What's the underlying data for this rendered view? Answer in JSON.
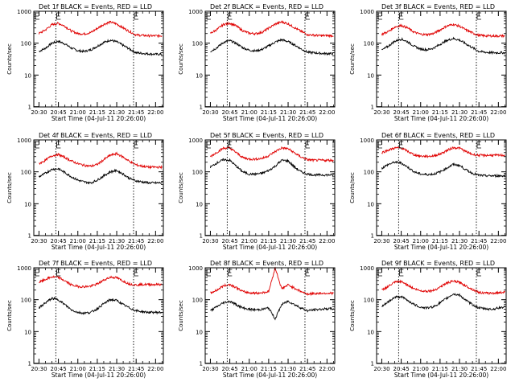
{
  "figure": {
    "tick_labels_x": [
      "20:30",
      "20:45",
      "21:00",
      "21:15",
      "21:30",
      "21:45",
      "22:00"
    ],
    "tick_labels_y": [
      "1",
      "10",
      "100",
      "1000"
    ],
    "colors": {
      "events": "#000000",
      "lld": "#e00000",
      "axes": "#000000",
      "background": "#ffffff"
    }
  },
  "chart_data": [
    {
      "type": "line",
      "title": "Det 1f BLACK = Events, RED = LLD",
      "xlabel": "Start Time (04-Jul-11 20:26:00)",
      "ylabel": "Counts/sec",
      "ylim": [
        1,
        1000
      ],
      "log_y": true,
      "xlim": [
        "20:26",
        "22:06"
      ],
      "markers": [
        "20:43",
        "21:43"
      ],
      "x": [
        "20:30",
        "20:35",
        "20:40",
        "20:45",
        "20:50",
        "20:55",
        "21:00",
        "21:05",
        "21:10",
        "21:15",
        "21:20",
        "21:25",
        "21:30",
        "21:35",
        "21:40",
        "21:45",
        "21:50",
        "21:55",
        "22:00",
        "22:05"
      ],
      "series": [
        {
          "name": "Events",
          "values": [
            55,
            70,
            100,
            115,
            95,
            70,
            58,
            55,
            62,
            80,
            105,
            125,
            110,
            85,
            65,
            50,
            48,
            46,
            45,
            45
          ]
        },
        {
          "name": "LLD",
          "values": [
            200,
            260,
            380,
            420,
            340,
            240,
            200,
            195,
            215,
            290,
            390,
            460,
            400,
            300,
            230,
            180,
            175,
            170,
            170,
            170
          ]
        }
      ]
    },
    {
      "type": "line",
      "title": "Det 2f BLACK = Events, RED = LLD",
      "xlabel": "Start Time (04-Jul-11 20:26:00)",
      "ylabel": "Counts/sec",
      "ylim": [
        1,
        1000
      ],
      "log_y": true,
      "xlim": [
        "20:26",
        "22:06"
      ],
      "markers": [
        "20:43",
        "21:43"
      ],
      "x": [
        "20:30",
        "20:35",
        "20:40",
        "20:45",
        "20:50",
        "20:55",
        "21:00",
        "21:05",
        "21:10",
        "21:15",
        "21:20",
        "21:25",
        "21:30",
        "21:35",
        "21:40",
        "21:45",
        "21:50",
        "21:55",
        "22:00",
        "22:05"
      ],
      "series": [
        {
          "name": "Events",
          "values": [
            55,
            72,
            105,
            120,
            98,
            72,
            60,
            57,
            64,
            82,
            108,
            128,
            112,
            88,
            66,
            52,
            50,
            48,
            47,
            47
          ]
        },
        {
          "name": "LLD",
          "values": [
            205,
            265,
            385,
            425,
            345,
            245,
            205,
            198,
            220,
            295,
            395,
            465,
            405,
            305,
            235,
            185,
            178,
            172,
            172,
            172
          ]
        }
      ]
    },
    {
      "type": "line",
      "title": "Det 3f BLACK = Events, RED = LLD",
      "xlabel": "Start Time (04-Jul-11 20:26:00)",
      "ylabel": "Counts/sec",
      "ylim": [
        1,
        1000
      ],
      "log_y": true,
      "xlim": [
        "20:26",
        "22:06"
      ],
      "markers": [
        "20:43",
        "21:43"
      ],
      "x": [
        "20:30",
        "20:35",
        "20:40",
        "20:45",
        "20:50",
        "20:55",
        "21:00",
        "21:05",
        "21:10",
        "21:15",
        "21:20",
        "21:25",
        "21:30",
        "21:35",
        "21:40",
        "21:45",
        "21:50",
        "21:55",
        "22:00",
        "22:05"
      ],
      "series": [
        {
          "name": "Events",
          "values": [
            60,
            80,
            115,
            135,
            110,
            80,
            65,
            62,
            70,
            92,
            120,
            140,
            125,
            95,
            72,
            55,
            52,
            50,
            50,
            50
          ]
        },
        {
          "name": "LLD",
          "values": [
            190,
            230,
            320,
            360,
            300,
            220,
            190,
            185,
            200,
            260,
            340,
            390,
            340,
            260,
            210,
            175,
            170,
            168,
            168,
            168
          ]
        }
      ]
    },
    {
      "type": "line",
      "title": "Det 4f BLACK = Events, RED = LLD",
      "xlabel": "Start Time (04-Jul-11 20:26:00)",
      "ylabel": "Counts/sec",
      "ylim": [
        1,
        1000
      ],
      "log_y": true,
      "xlim": [
        "20:26",
        "22:06"
      ],
      "markers": [
        "20:43",
        "21:43"
      ],
      "x": [
        "20:30",
        "20:35",
        "20:40",
        "20:45",
        "20:50",
        "20:55",
        "21:00",
        "21:05",
        "21:10",
        "21:15",
        "21:20",
        "21:25",
        "21:30",
        "21:35",
        "21:40",
        "21:45",
        "21:50",
        "21:55",
        "22:00",
        "22:05"
      ],
      "series": [
        {
          "name": "Events",
          "values": [
            70,
            90,
            120,
            125,
            95,
            70,
            55,
            48,
            45,
            55,
            75,
            100,
            110,
            85,
            62,
            52,
            48,
            45,
            45,
            45
          ]
        },
        {
          "name": "LLD",
          "values": [
            180,
            230,
            320,
            350,
            280,
            220,
            180,
            160,
            150,
            170,
            240,
            330,
            370,
            290,
            210,
            165,
            150,
            140,
            140,
            140
          ]
        }
      ]
    },
    {
      "type": "line",
      "title": "Det 5f BLACK = Events, RED = LLD",
      "xlabel": "Start Time (04-Jul-11 20:26:00)",
      "ylabel": "Counts/sec",
      "ylim": [
        1,
        1000
      ],
      "log_y": true,
      "xlim": [
        "20:26",
        "22:06"
      ],
      "markers": [
        "20:43",
        "21:43"
      ],
      "x": [
        "20:30",
        "20:35",
        "20:40",
        "20:45",
        "20:50",
        "20:55",
        "21:00",
        "21:05",
        "21:10",
        "21:15",
        "21:20",
        "21:25",
        "21:30",
        "21:35",
        "21:40",
        "21:45",
        "21:50",
        "21:55",
        "22:00",
        "22:05"
      ],
      "series": [
        {
          "name": "Events",
          "values": [
            140,
            190,
            240,
            230,
            150,
            100,
            85,
            85,
            90,
            110,
            150,
            230,
            220,
            140,
            100,
            85,
            80,
            80,
            80,
            80
          ]
        },
        {
          "name": "LLD",
          "values": [
            300,
            410,
            550,
            560,
            400,
            280,
            250,
            250,
            265,
            320,
            430,
            560,
            530,
            390,
            290,
            240,
            230,
            230,
            230,
            230
          ]
        }
      ]
    },
    {
      "type": "line",
      "title": "Det 6f BLACK = Events, RED = LLD",
      "xlabel": "Start Time (04-Jul-11 20:26:00)",
      "ylabel": "Counts/sec",
      "ylim": [
        1,
        1000
      ],
      "log_y": true,
      "xlim": [
        "20:26",
        "22:06"
      ],
      "markers": [
        "20:43",
        "21:43"
      ],
      "x": [
        "20:30",
        "20:35",
        "20:40",
        "20:45",
        "20:50",
        "20:55",
        "21:00",
        "21:05",
        "21:10",
        "21:15",
        "21:20",
        "21:25",
        "21:30",
        "21:35",
        "21:40",
        "21:45",
        "21:50",
        "21:55",
        "22:00",
        "22:05"
      ],
      "series": [
        {
          "name": "Events",
          "values": [
            130,
            170,
            200,
            190,
            140,
            100,
            85,
            82,
            85,
            100,
            130,
            170,
            160,
            115,
            90,
            78,
            75,
            75,
            75,
            75
          ]
        },
        {
          "name": "LLD",
          "values": [
            400,
            480,
            560,
            560,
            440,
            340,
            310,
            305,
            315,
            360,
            460,
            570,
            560,
            430,
            350,
            330,
            330,
            330,
            330,
            330
          ]
        }
      ]
    },
    {
      "type": "line",
      "title": "Det 7f BLACK = Events, RED = LLD",
      "xlabel": "Start Time (04-Jul-11 20:26:00)",
      "ylabel": "Counts/sec",
      "ylim": [
        1,
        1000
      ],
      "log_y": true,
      "xlim": [
        "20:26",
        "22:06"
      ],
      "markers": [
        "20:43",
        "21:43"
      ],
      "x": [
        "20:30",
        "20:35",
        "20:40",
        "20:45",
        "20:50",
        "20:55",
        "21:00",
        "21:05",
        "21:10",
        "21:15",
        "21:20",
        "21:25",
        "21:30",
        "21:35",
        "21:40",
        "21:45",
        "21:50",
        "21:55",
        "22:00",
        "22:05"
      ],
      "series": [
        {
          "name": "Events",
          "values": [
            55,
            80,
            110,
            100,
            70,
            48,
            40,
            38,
            40,
            52,
            75,
            100,
            95,
            70,
            55,
            45,
            42,
            40,
            40,
            40
          ]
        },
        {
          "name": "LLD",
          "values": [
            350,
            430,
            520,
            500,
            390,
            290,
            260,
            255,
            265,
            310,
            410,
            510,
            490,
            380,
            310,
            290,
            300,
            300,
            300,
            300
          ]
        }
      ]
    },
    {
      "type": "line",
      "title": "Det 8f BLACK = Events, RED = LLD",
      "xlabel": "Start Time (04-Jul-11 20:26:00)",
      "ylabel": "Counts/sec",
      "ylim": [
        1,
        1000
      ],
      "log_y": true,
      "xlim": [
        "20:26",
        "22:06"
      ],
      "markers": [
        "20:43",
        "21:43"
      ],
      "x": [
        "20:30",
        "20:35",
        "20:40",
        "20:45",
        "20:50",
        "20:55",
        "21:00",
        "21:05",
        "21:10",
        "21:15",
        "21:20",
        "21:25",
        "21:30",
        "21:35",
        "21:40",
        "21:45",
        "21:50",
        "21:55",
        "22:00",
        "22:05"
      ],
      "series": [
        {
          "name": "Events",
          "values": [
            45,
            60,
            80,
            90,
            70,
            55,
            50,
            48,
            50,
            55,
            25,
            70,
            90,
            70,
            55,
            45,
            48,
            50,
            52,
            52
          ]
        },
        {
          "name": "LLD",
          "values": [
            160,
            200,
            270,
            300,
            240,
            180,
            165,
            160,
            165,
            180,
            1000,
            220,
            290,
            230,
            180,
            150,
            155,
            160,
            160,
            160
          ]
        }
      ]
    },
    {
      "type": "line",
      "title": "Det 9f BLACK = Events, RED = LLD",
      "xlabel": "Start Time (04-Jul-11 20:26:00)",
      "ylabel": "Counts/sec",
      "ylim": [
        1,
        1000
      ],
      "log_y": true,
      "xlim": [
        "20:26",
        "22:06"
      ],
      "markers": [
        "20:43",
        "21:43"
      ],
      "x": [
        "20:30",
        "20:35",
        "20:40",
        "20:45",
        "20:50",
        "20:55",
        "21:00",
        "21:05",
        "21:10",
        "21:15",
        "21:20",
        "21:25",
        "21:30",
        "21:35",
        "21:40",
        "21:45",
        "21:50",
        "21:55",
        "22:00",
        "22:05"
      ],
      "series": [
        {
          "name": "Events",
          "values": [
            60,
            85,
            120,
            125,
            95,
            70,
            58,
            55,
            60,
            80,
            110,
            150,
            140,
            95,
            70,
            55,
            52,
            50,
            55,
            60
          ]
        },
        {
          "name": "LLD",
          "values": [
            200,
            260,
            350,
            370,
            290,
            220,
            190,
            185,
            195,
            250,
            330,
            380,
            350,
            270,
            210,
            170,
            160,
            160,
            165,
            175
          ]
        }
      ]
    }
  ]
}
